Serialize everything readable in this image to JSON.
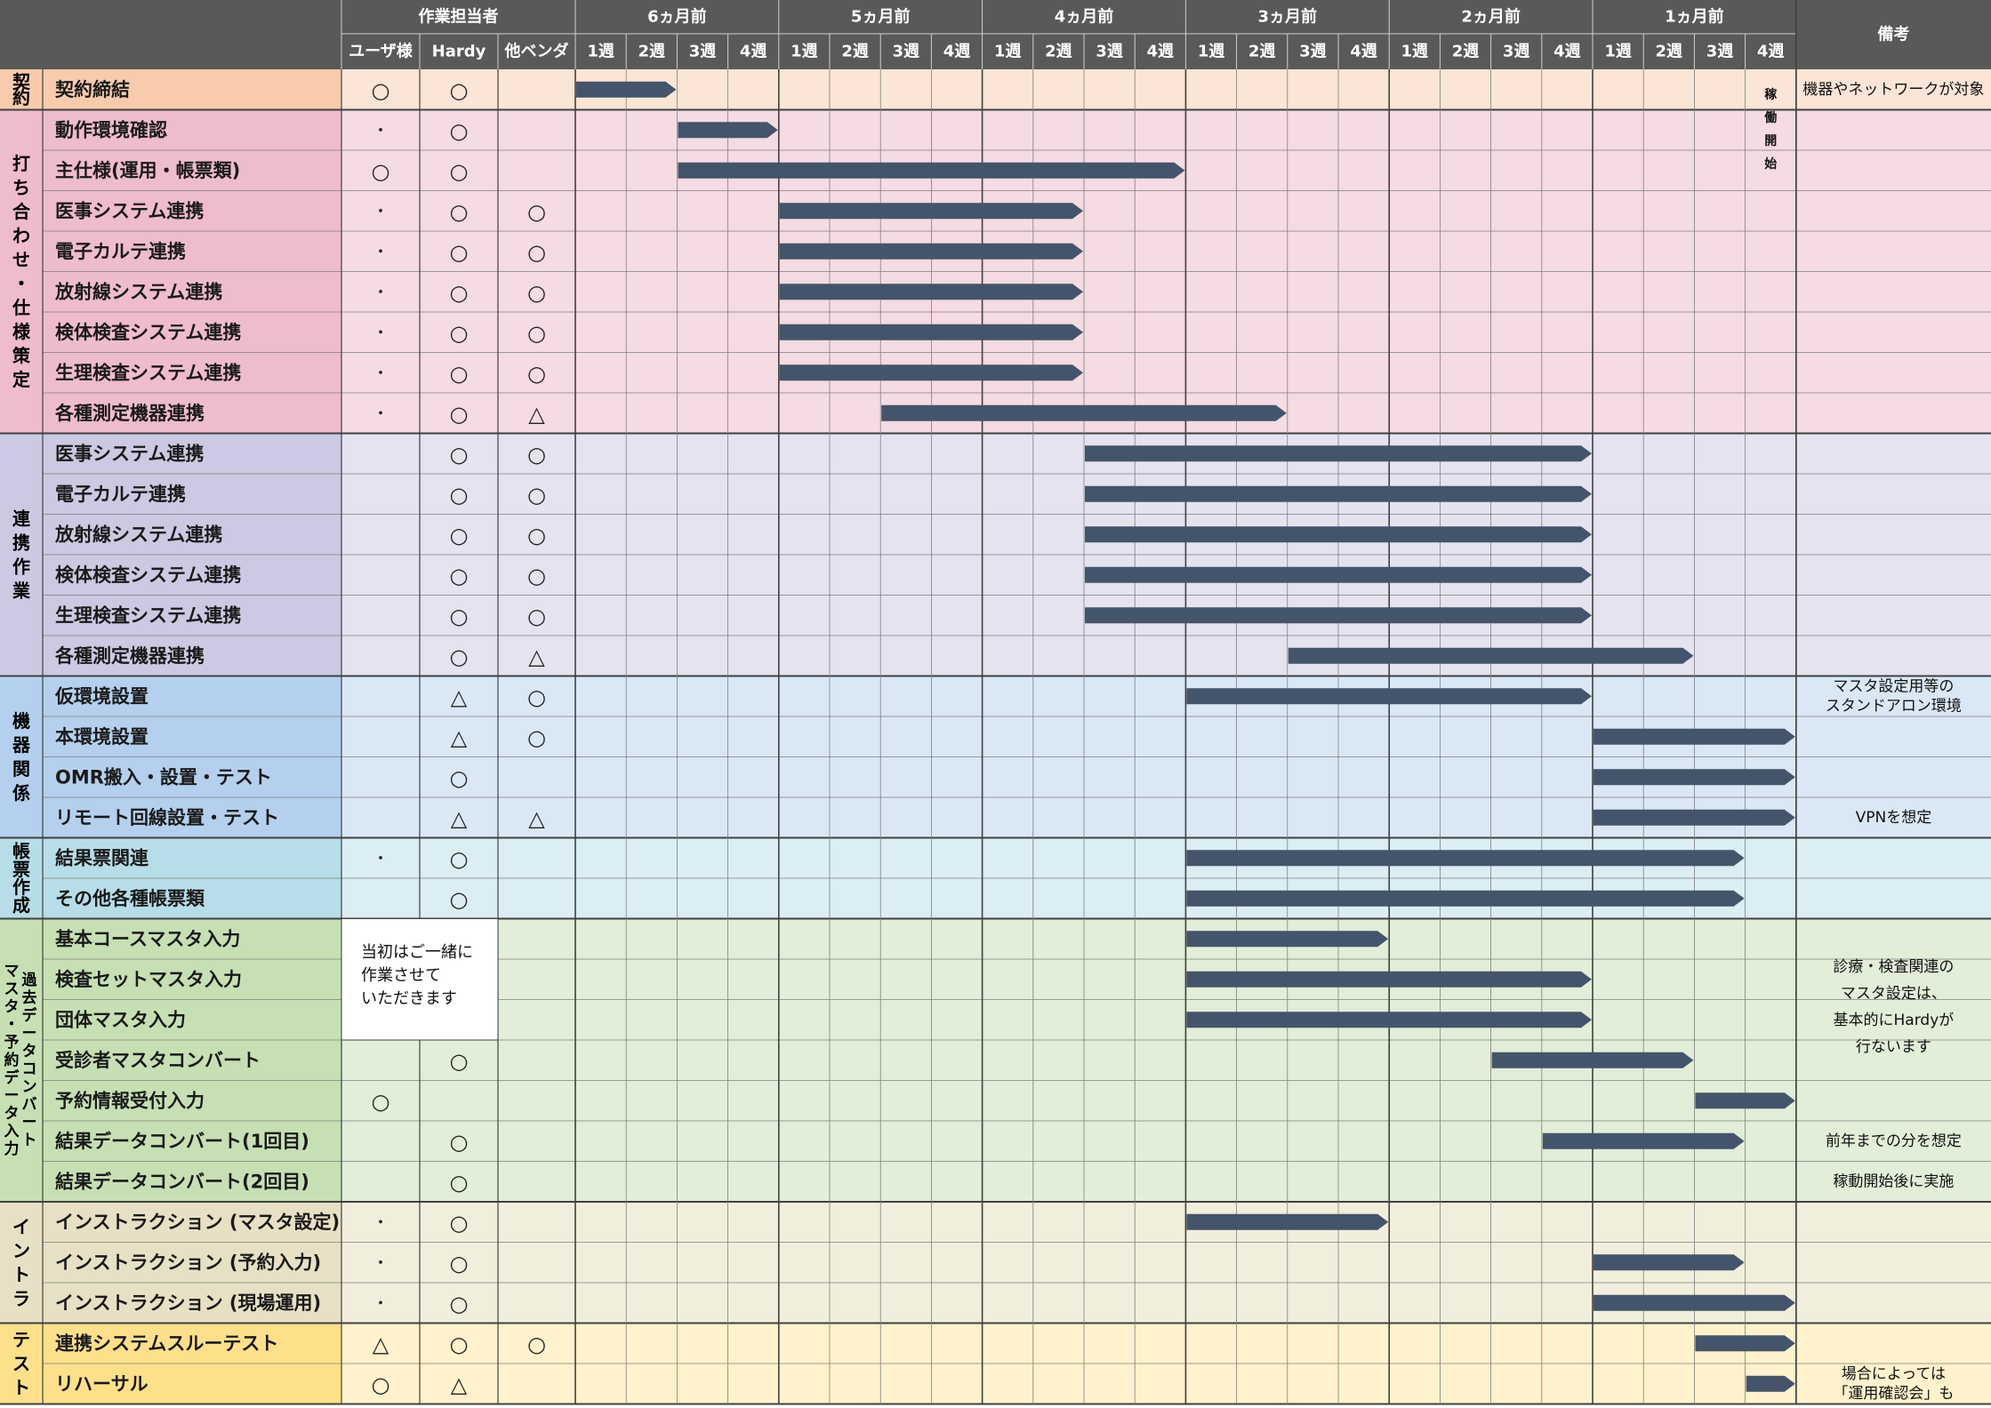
{
  "header": {
    "assignees_title": "作業担当者",
    "assignees": [
      "ユーザ様",
      "Hardy",
      "他ベンダ"
    ],
    "months": [
      "6ヵ月前",
      "5ヵ月前",
      "4ヵ月前",
      "3ヵ月前",
      "2ヵ月前",
      "1ヵ月前"
    ],
    "weeks": [
      "1週",
      "2週",
      "3週",
      "4週"
    ],
    "remarks_title": "備考"
  },
  "go_live_label": "稼働開始",
  "colors": {
    "header_bg": "#595959",
    "grid_line": "#7f7f7f",
    "group_line": "#404040",
    "bar": "#44546a"
  },
  "chart_data": {
    "type": "gantt",
    "time_unit": "week",
    "timeline": "24 weeks, 6ヵ月前 1週 to 1ヵ月前 4週",
    "symbols": [
      "○",
      "△",
      "・"
    ],
    "groups": [
      {
        "name": "契約",
        "label_lines": [
          "契",
          "約"
        ],
        "bg": "#fbe5d6",
        "label_bg": "#f8cbad",
        "tasks": [
          {
            "name": "契約締結",
            "user": "○",
            "hardy": "○",
            "vendor": "",
            "start": 1,
            "end": 2,
            "remark": "機器やネットワークが対象"
          }
        ]
      },
      {
        "name": "打ち合わせ・仕様策定",
        "label_lines": [
          "打",
          "ち",
          "合",
          "わ",
          "せ",
          "・",
          "仕",
          "様",
          "策",
          "定"
        ],
        "bg": "#f5dbe2",
        "label_bg": "#efbccb",
        "tasks": [
          {
            "name": "動作環境確認",
            "user": "・",
            "hardy": "○",
            "vendor": "",
            "start": 3,
            "end": 4,
            "remark": ""
          },
          {
            "name": "主仕様(運用・帳票類)",
            "user": "○",
            "hardy": "○",
            "vendor": "",
            "start": 3,
            "end": 12,
            "remark": ""
          },
          {
            "name": "医事システム連携",
            "user": "・",
            "hardy": "○",
            "vendor": "○",
            "start": 5,
            "end": 10,
            "remark": ""
          },
          {
            "name": "電子カルテ連携",
            "user": "・",
            "hardy": "○",
            "vendor": "○",
            "start": 5,
            "end": 10,
            "remark": ""
          },
          {
            "name": "放射線システム連携",
            "user": "・",
            "hardy": "○",
            "vendor": "○",
            "start": 5,
            "end": 10,
            "remark": ""
          },
          {
            "name": "検体検査システム連携",
            "user": "・",
            "hardy": "○",
            "vendor": "○",
            "start": 5,
            "end": 10,
            "remark": ""
          },
          {
            "name": "生理検査システム連携",
            "user": "・",
            "hardy": "○",
            "vendor": "○",
            "start": 5,
            "end": 10,
            "remark": ""
          },
          {
            "name": "各種測定機器連携",
            "user": "・",
            "hardy": "○",
            "vendor": "△",
            "start": 7,
            "end": 14,
            "remark": ""
          }
        ]
      },
      {
        "name": "連携作業",
        "label_lines": [
          "連",
          "携",
          "作",
          "業"
        ],
        "bg": "#e5e3f0",
        "label_bg": "#ccc9e2",
        "tasks": [
          {
            "name": "医事システム連携",
            "user": "",
            "hardy": "○",
            "vendor": "○",
            "start": 11,
            "end": 20,
            "remark": ""
          },
          {
            "name": "電子カルテ連携",
            "user": "",
            "hardy": "○",
            "vendor": "○",
            "start": 11,
            "end": 20,
            "remark": ""
          },
          {
            "name": "放射線システム連携",
            "user": "",
            "hardy": "○",
            "vendor": "○",
            "start": 11,
            "end": 20,
            "remark": ""
          },
          {
            "name": "検体検査システム連携",
            "user": "",
            "hardy": "○",
            "vendor": "○",
            "start": 11,
            "end": 20,
            "remark": ""
          },
          {
            "name": "生理検査システム連携",
            "user": "",
            "hardy": "○",
            "vendor": "○",
            "start": 11,
            "end": 20,
            "remark": ""
          },
          {
            "name": "各種測定機器連携",
            "user": "",
            "hardy": "○",
            "vendor": "△",
            "start": 15,
            "end": 22,
            "remark": ""
          }
        ]
      },
      {
        "name": "機器関係",
        "label_lines": [
          "機",
          "器",
          "関",
          "係"
        ],
        "bg": "#dae8f6",
        "label_bg": "#b4d0ee",
        "tasks": [
          {
            "name": "仮環境設置",
            "user": "",
            "hardy": "△",
            "vendor": "○",
            "start": 13,
            "end": 20,
            "remark": "マスタ設定用等の|スタンドアロン環境"
          },
          {
            "name": "本環境設置",
            "user": "",
            "hardy": "△",
            "vendor": "○",
            "start": 21,
            "end": 24,
            "remark": ""
          },
          {
            "name": "OMR搬入・設置・テスト",
            "user": "",
            "hardy": "○",
            "vendor": "",
            "start": 21,
            "end": 24,
            "remark": ""
          },
          {
            "name": "リモート回線設置・テスト",
            "user": "",
            "hardy": "△",
            "vendor": "△",
            "start": 21,
            "end": 24,
            "remark": "VPNを想定"
          }
        ]
      },
      {
        "name": "帳票作成",
        "label_lines": [
          "帳",
          "票",
          "作",
          "成"
        ],
        "bg": "#daeef3",
        "label_bg": "#b7dde8",
        "tasks": [
          {
            "name": "結果票関連",
            "user": "・",
            "hardy": "○",
            "vendor": "",
            "start": 13,
            "end": 23,
            "remark": ""
          },
          {
            "name": "その他各種帳票類",
            "user": "",
            "hardy": "○",
            "vendor": "",
            "start": 13,
            "end": 23,
            "remark": ""
          }
        ]
      },
      {
        "name": "過去データコンバート・マスタ・予約データ入力",
        "label_lines": [
          "過去データコンバート",
          "マスタ・予約データ入力"
        ],
        "bg": "#e2eed8",
        "label_bg": "#c6e0b4",
        "tasks": [
          {
            "name": "基本コースマスタ入力",
            "user": "",
            "hardy": "",
            "vendor": "",
            "start": 13,
            "end": 16,
            "remark": ""
          },
          {
            "name": "検査セットマスタ入力",
            "user": "",
            "hardy": "",
            "vendor": "",
            "start": 13,
            "end": 20,
            "remark": ""
          },
          {
            "name": "団体マスタ入力",
            "user": "",
            "hardy": "",
            "vendor": "",
            "start": 13,
            "end": 20,
            "remark": ""
          },
          {
            "name": "受診者マスタコンバート",
            "user": "",
            "hardy": "○",
            "vendor": "",
            "start": 19,
            "end": 22,
            "remark": ""
          },
          {
            "name": "予約情報受付入力",
            "user": "○",
            "hardy": "",
            "vendor": "",
            "start": 23,
            "end": 24,
            "remark": ""
          },
          {
            "name": "結果データコンバート(1回目)",
            "user": "",
            "hardy": "○",
            "vendor": "",
            "start": 20,
            "end": 23,
            "remark": "前年までの分を想定"
          },
          {
            "name": "結果データコンバート(2回目)",
            "user": "",
            "hardy": "○",
            "vendor": "",
            "start": null,
            "end": null,
            "remark": "稼動開始後に実施"
          }
        ]
      },
      {
        "name": "イントラ",
        "label_lines": [
          "イ",
          "ン",
          "ト",
          "ラ"
        ],
        "bg": "#f2eedc",
        "label_bg": "#e7e0c4",
        "tasks": [
          {
            "name": "インストラクション (マスタ設定)",
            "user": "・",
            "hardy": "○",
            "vendor": "",
            "start": 13,
            "end": 16,
            "remark": ""
          },
          {
            "name": "インストラクション (予約入力)",
            "user": "・",
            "hardy": "○",
            "vendor": "",
            "start": 21,
            "end": 23,
            "remark": ""
          },
          {
            "name": "インストラクション (現場運用)",
            "user": "・",
            "hardy": "○",
            "vendor": "",
            "start": 21,
            "end": 24,
            "remark": ""
          }
        ]
      },
      {
        "name": "テスト",
        "label_lines": [
          "テ",
          "ス",
          "ト"
        ],
        "bg": "#fff2cc",
        "label_bg": "#ffe08a",
        "tasks": [
          {
            "name": "連携システムスルーテスト",
            "user": "△",
            "hardy": "○",
            "vendor": "○",
            "start": 23,
            "end": 24,
            "remark": ""
          },
          {
            "name": "リハーサル",
            "user": "○",
            "hardy": "△",
            "vendor": "",
            "start": 24,
            "end": 24,
            "remark": ""
          }
        ]
      }
    ],
    "notes": [
      {
        "text": "当初はご一緒に|作業させて|いただきます"
      },
      {
        "text": "診療・検査関連の|マスタ設定は、|基本的にHardyが|行ないます"
      },
      {
        "text": "場合によっては|「運用確認会」も"
      }
    ]
  }
}
